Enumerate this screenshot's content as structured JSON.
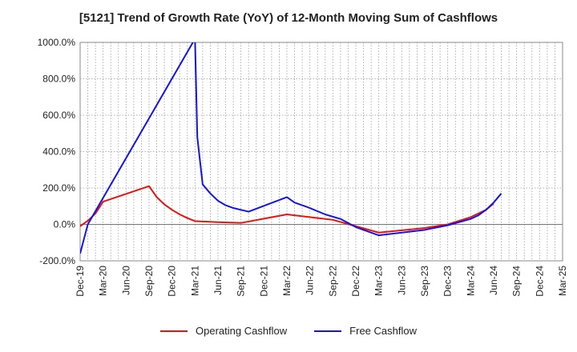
{
  "chart_data": {
    "type": "line",
    "title": "[5121]  Trend of Growth Rate (YoY) of 12-Month Moving Sum of Cashflows",
    "x_labels": [
      "Dec-19",
      "Mar-20",
      "Jun-20",
      "Sep-20",
      "Dec-20",
      "Mar-21",
      "Jun-21",
      "Sep-21",
      "Dec-21",
      "Mar-22",
      "Jun-22",
      "Sep-22",
      "Dec-22",
      "Mar-23",
      "Jun-23",
      "Sep-23",
      "Dec-23",
      "Mar-24",
      "Jun-24",
      "Sep-24",
      "Dec-24",
      "Mar-25"
    ],
    "y_ticks": [
      {
        "value": 1000,
        "label": "1000.0%"
      },
      {
        "value": 800,
        "label": "800.0%"
      },
      {
        "value": 600,
        "label": "600.0%"
      },
      {
        "value": 400,
        "label": "400.0%"
      },
      {
        "value": 200,
        "label": "200.0%"
      },
      {
        "value": 0,
        "label": "0.0%"
      },
      {
        "value": -200,
        "label": "-200.0%"
      }
    ],
    "ylim": [
      -200,
      1000
    ],
    "grid": true,
    "legend_position": "bottom",
    "series": [
      {
        "name": "Operating Cashflow",
        "color": "#e8130c",
        "points": [
          [
            0,
            -10
          ],
          [
            1,
            20
          ],
          [
            2,
            60
          ],
          [
            3,
            125
          ],
          [
            9,
            210
          ],
          [
            10,
            150
          ],
          [
            11,
            110
          ],
          [
            12,
            80
          ],
          [
            13,
            55
          ],
          [
            14,
            35
          ],
          [
            15,
            18
          ],
          [
            18,
            12
          ],
          [
            21,
            8
          ],
          [
            27,
            55
          ],
          [
            33,
            25
          ],
          [
            36,
            -10
          ],
          [
            39,
            -45
          ],
          [
            45,
            -20
          ],
          [
            48,
            0
          ],
          [
            51,
            40
          ],
          [
            53,
            80
          ],
          [
            54,
            115
          ]
        ]
      },
      {
        "name": "Free Cashflow",
        "color": "#1414e6",
        "points": [
          [
            0,
            -160
          ],
          [
            1,
            0
          ],
          [
            15,
            1020
          ],
          [
            15.3,
            480
          ],
          [
            16,
            220
          ],
          [
            17,
            170
          ],
          [
            18,
            130
          ],
          [
            19,
            105
          ],
          [
            20,
            90
          ],
          [
            21,
            80
          ],
          [
            22,
            70
          ],
          [
            27,
            150
          ],
          [
            28,
            120
          ],
          [
            30,
            90
          ],
          [
            32,
            55
          ],
          [
            34,
            30
          ],
          [
            36,
            -15
          ],
          [
            39,
            -60
          ],
          [
            45,
            -30
          ],
          [
            48,
            -5
          ],
          [
            51,
            30
          ],
          [
            52,
            50
          ],
          [
            53,
            80
          ],
          [
            54,
            120
          ],
          [
            55,
            170
          ]
        ]
      }
    ]
  }
}
